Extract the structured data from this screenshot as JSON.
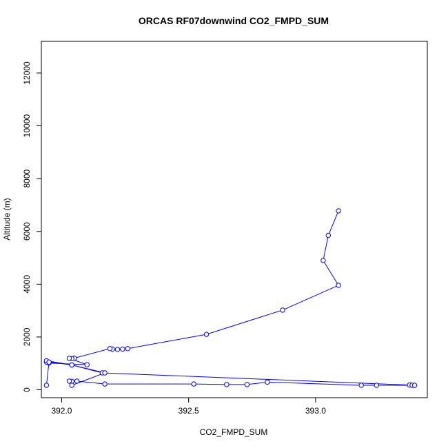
{
  "chart_data": {
    "type": "line",
    "title": "ORCAS RF07downwind CO2_FMPD_SUM",
    "xlabel": "CO2_FMPD_SUM",
    "ylabel": "Altitude (m)",
    "xlim": [
      391.92,
      393.44
    ],
    "ylim": [
      -300,
      13200
    ],
    "x_ticks": [
      392.0,
      392.5,
      393.0
    ],
    "x_tick_labels": [
      "392.0",
      "392.5",
      "393.0"
    ],
    "y_ticks": [
      0,
      2000,
      4000,
      6000,
      8000,
      10000,
      12000
    ],
    "y_tick_labels": [
      "0",
      "2000",
      "4000",
      "6000",
      "8000",
      "10000",
      "12000"
    ],
    "grid": false,
    "marker": "open-circle",
    "series": [
      {
        "color": "#0000ff",
        "x": [
          393.09,
          393.05,
          393.03,
          393.09,
          392.87,
          392.57,
          392.26,
          392.24,
          392.22,
          392.2,
          392.19,
          392.05,
          392.04,
          392.03,
          392.1,
          391.95,
          391.94,
          391.94,
          392.04,
          392.16,
          393.37,
          393.38,
          393.39,
          393.24,
          393.18,
          392.81,
          392.73,
          392.65,
          392.52,
          392.17,
          392.06,
          392.04,
          392.03,
          392.04,
          392.17,
          392.04,
          391.95,
          391.94
        ],
        "y": [
          6780,
          5850,
          4900,
          3960,
          3020,
          2100,
          1560,
          1540,
          1530,
          1540,
          1560,
          1200,
          1180,
          1190,
          950,
          1010,
          1050,
          1100,
          940,
          640,
          180,
          170,
          170,
          170,
          170,
          290,
          200,
          200,
          220,
          220,
          330,
          320,
          330,
          170,
          640,
          940,
          1050,
          170
        ]
      }
    ]
  }
}
